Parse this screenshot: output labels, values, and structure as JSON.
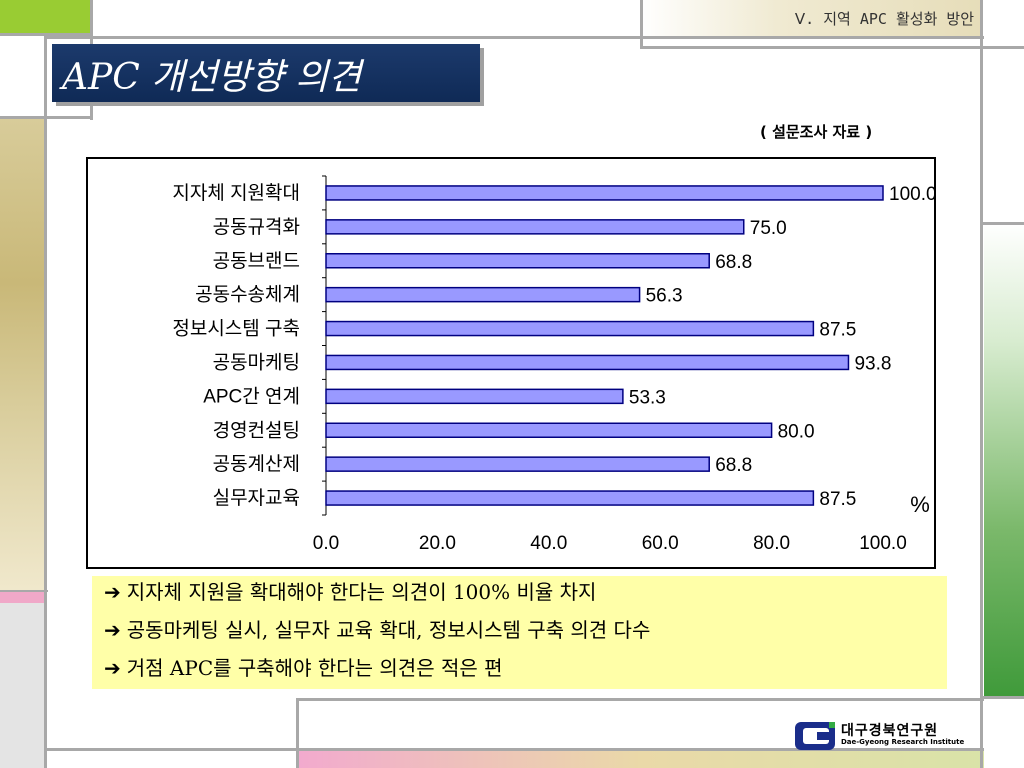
{
  "header": {
    "section": "Ⅴ. 지역 APC 활성화 방안"
  },
  "title": "APC 개선방향 의견",
  "source_note": "( 설문조사 자료 )",
  "chart_data": {
    "type": "bar",
    "orientation": "horizontal",
    "categories": [
      "지자체 지원확대",
      "공동규격화",
      "공동브랜드",
      "공동수송체계",
      "정보시스템 구축",
      "공동마케팅",
      "APC간 연계",
      "경영컨설팅",
      "공동계산제",
      "실무자교육"
    ],
    "values": [
      100.0,
      75.0,
      68.8,
      56.3,
      87.5,
      93.8,
      53.3,
      80.0,
      68.8,
      87.5
    ],
    "value_labels": [
      "100.0",
      "75.0",
      "68.8",
      "56.3",
      "87.5",
      "93.8",
      "53.3",
      "80.0",
      "68.8",
      "87.5"
    ],
    "xticks": [
      "0.0",
      "20.0",
      "40.0",
      "60.0",
      "80.0",
      "100.0"
    ],
    "xlim": [
      0,
      100
    ],
    "unit": "%",
    "grid": false,
    "bar_color": "#9999ff",
    "bar_edge": "#000080"
  },
  "summary": [
    "지자체 지원을 확대해야 한다는 의견이 100% 비율 차지",
    "공동마케팅 실시, 실무자 교육 확대, 정보시스템 구축 의견 다수",
    "거점 APC를 구축해야 한다는 의견은 적은 편"
  ],
  "summary_arrow": "➔",
  "logo": {
    "korean": "대구경북연구원",
    "english": "Dae-Gyeong Research Institute"
  },
  "colors": {
    "title_bg": "#14305e",
    "summary_bg": "#ffffa8",
    "accent_green": "#99cc33"
  }
}
